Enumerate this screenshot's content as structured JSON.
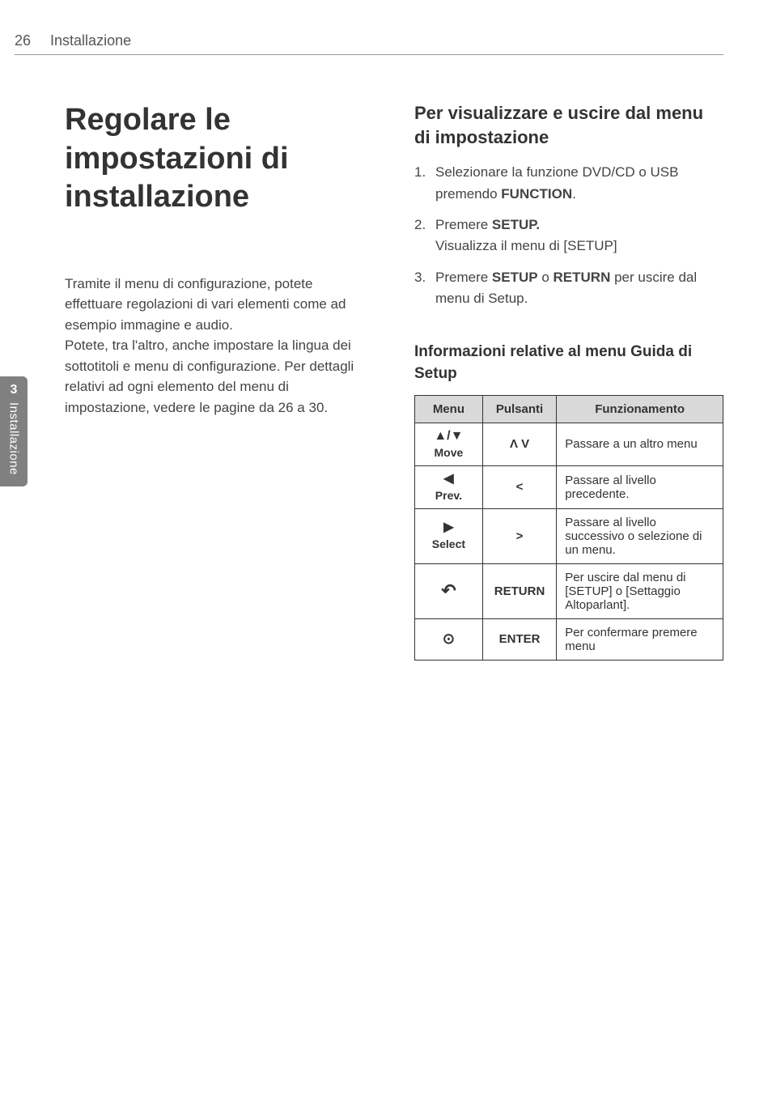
{
  "header": {
    "page_number": "26",
    "section": "Installazione"
  },
  "side_tab": {
    "number": "3",
    "label": "Installazione"
  },
  "left": {
    "title": "Regolare le impostazioni di installazione",
    "paragraph": "Tramite il menu di configurazione, potete effettuare regolazioni di vari elementi come ad esempio immagine e audio.\nPotete, tra l'altro, anche impostare la lingua dei sottotitoli e menu di configurazione. Per dettagli relativi ad ogni elemento del menu di impostazione, vedere le pagine da 26 a 30."
  },
  "right": {
    "subheading": "Per visualizzare e uscire dal menu di impostazione",
    "steps": {
      "s1_a": "Selezionare la funzione DVD/CD o USB premendo ",
      "s1_b": "FUNCTION",
      "s1_c": ".",
      "s2_a": "Premere ",
      "s2_b": "SETUP.",
      "s2_c": "Visualizza il menu di [SETUP]",
      "s3_a": "Premere ",
      "s3_b": "SETUP",
      "s3_c": " o ",
      "s3_d": "RETURN",
      "s3_e": " per uscire dal menu di Setup."
    },
    "table_heading": "Informazioni relative al menu Guida di Setup",
    "table": {
      "headers": {
        "menu": "Menu",
        "pulsanti": "Pulsanti",
        "funzionamento": "Funzionamento"
      },
      "rows": [
        {
          "menu_glyph": "▲/▼",
          "menu_label": "Move",
          "btn": "Λ V",
          "func": "Passare a un altro menu"
        },
        {
          "menu_glyph": "◀",
          "menu_label": "Prev.",
          "btn": "<",
          "func": "Passare al livello precedente."
        },
        {
          "menu_glyph": "▶",
          "menu_label": "Select",
          "btn": ">",
          "func": "Passare al livello successivo o selezione di un menu."
        },
        {
          "menu_glyph": "↶",
          "menu_label": "",
          "btn": "RETURN",
          "func": "Per uscire dal menu di [SETUP] o [Settaggio Altoparlant]."
        },
        {
          "menu_glyph": "⊙",
          "menu_label": "",
          "btn": "ENTER",
          "func": "Per confermare premere menu"
        }
      ]
    }
  }
}
